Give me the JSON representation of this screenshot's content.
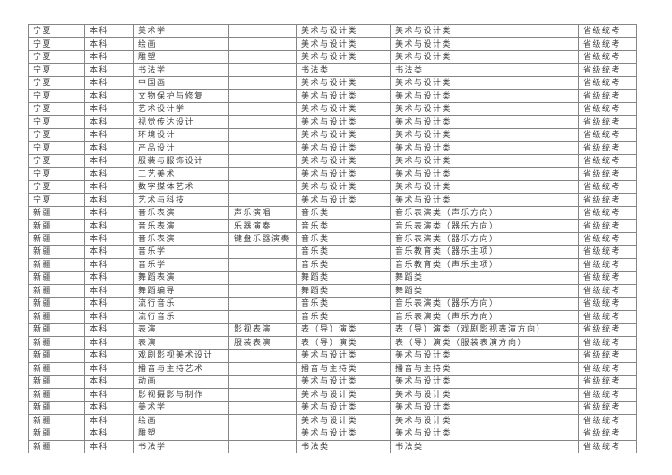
{
  "page": {
    "background_color": "#ffffff",
    "text_color": "#3f3f3f",
    "border_color": "#858585"
  },
  "table": {
    "columns": [
      "province",
      "level",
      "major",
      "direction",
      "exam-category",
      "statewide-category",
      "exam-type"
    ],
    "rows": [
      [
        "宁夏",
        "本科",
        "美术学",
        "",
        "美术与设计类",
        "美术与设计类",
        "省级统考"
      ],
      [
        "宁夏",
        "本科",
        "绘画",
        "",
        "美术与设计类",
        "美术与设计类",
        "省级统考"
      ],
      [
        "宁夏",
        "本科",
        "雕塑",
        "",
        "美术与设计类",
        "美术与设计类",
        "省级统考"
      ],
      [
        "宁夏",
        "本科",
        "书法学",
        "",
        "书法类",
        "书法类",
        "省级统考"
      ],
      [
        "宁夏",
        "本科",
        "中国画",
        "",
        "美术与设计类",
        "美术与设计类",
        "省级统考"
      ],
      [
        "宁夏",
        "本科",
        "文物保护与修复",
        "",
        "美术与设计类",
        "美术与设计类",
        "省级统考"
      ],
      [
        "宁夏",
        "本科",
        "艺术设计学",
        "",
        "美术与设计类",
        "美术与设计类",
        "省级统考"
      ],
      [
        "宁夏",
        "本科",
        "视觉传达设计",
        "",
        "美术与设计类",
        "美术与设计类",
        "省级统考"
      ],
      [
        "宁夏",
        "本科",
        "环境设计",
        "",
        "美术与设计类",
        "美术与设计类",
        "省级统考"
      ],
      [
        "宁夏",
        "本科",
        "产品设计",
        "",
        "美术与设计类",
        "美术与设计类",
        "省级统考"
      ],
      [
        "宁夏",
        "本科",
        "服装与服饰设计",
        "",
        "美术与设计类",
        "美术与设计类",
        "省级统考"
      ],
      [
        "宁夏",
        "本科",
        "工艺美术",
        "",
        "美术与设计类",
        "美术与设计类",
        "省级统考"
      ],
      [
        "宁夏",
        "本科",
        "数字媒体艺术",
        "",
        "美术与设计类",
        "美术与设计类",
        "省级统考"
      ],
      [
        "宁夏",
        "本科",
        "艺术与科技",
        "",
        "美术与设计类",
        "美术与设计类",
        "省级统考"
      ],
      [
        "新疆",
        "本科",
        "音乐表演",
        "声乐演唱",
        "音乐类",
        "音乐表演类（声乐方向）",
        "省级统考"
      ],
      [
        "新疆",
        "本科",
        "音乐表演",
        "乐器演奏",
        "音乐类",
        "音乐表演类（器乐方向）",
        "省级统考"
      ],
      [
        "新疆",
        "本科",
        "音乐表演",
        "键盘乐器演奏",
        "音乐类",
        "音乐表演类（器乐方向）",
        "省级统考"
      ],
      [
        "新疆",
        "本科",
        "音乐学",
        "",
        "音乐类",
        "音乐教育类（器乐主项）",
        "省级统考"
      ],
      [
        "新疆",
        "本科",
        "音乐学",
        "",
        "音乐类",
        "音乐教育类（声乐主项）",
        "省级统考"
      ],
      [
        "新疆",
        "本科",
        "舞蹈表演",
        "",
        "舞蹈类",
        "舞蹈类",
        "省级统考"
      ],
      [
        "新疆",
        "本科",
        "舞蹈编导",
        "",
        "舞蹈类",
        "舞蹈类",
        "省级统考"
      ],
      [
        "新疆",
        "本科",
        "流行音乐",
        "",
        "音乐类",
        "音乐表演类（器乐方向）",
        "省级统考"
      ],
      [
        "新疆",
        "本科",
        "流行音乐",
        "",
        "音乐类",
        "音乐表演类（声乐方向）",
        "省级统考"
      ],
      [
        "新疆",
        "本科",
        "表演",
        "影视表演",
        "表（导）演类",
        "表（导）演类（戏剧影视表演方向）",
        "省级统考"
      ],
      [
        "新疆",
        "本科",
        "表演",
        "服装表演",
        "表（导）演类",
        "表（导）演类（服装表演方向）",
        "省级统考"
      ],
      [
        "新疆",
        "本科",
        "戏剧影视美术设计",
        "",
        "美术与设计类",
        "美术与设计类",
        "省级统考"
      ],
      [
        "新疆",
        "本科",
        "播音与主持艺术",
        "",
        "播音与主持类",
        "播音与主持类",
        "省级统考"
      ],
      [
        "新疆",
        "本科",
        "动画",
        "",
        "美术与设计类",
        "美术与设计类",
        "省级统考"
      ],
      [
        "新疆",
        "本科",
        "影视摄影与制作",
        "",
        "美术与设计类",
        "美术与设计类",
        "省级统考"
      ],
      [
        "新疆",
        "本科",
        "美术学",
        "",
        "美术与设计类",
        "美术与设计类",
        "省级统考"
      ],
      [
        "新疆",
        "本科",
        "绘画",
        "",
        "美术与设计类",
        "美术与设计类",
        "省级统考"
      ],
      [
        "新疆",
        "本科",
        "雕塑",
        "",
        "美术与设计类",
        "美术与设计类",
        "省级统考"
      ],
      [
        "新疆",
        "本科",
        "书法学",
        "",
        "书法类",
        "书法类",
        "省级统考"
      ]
    ]
  }
}
